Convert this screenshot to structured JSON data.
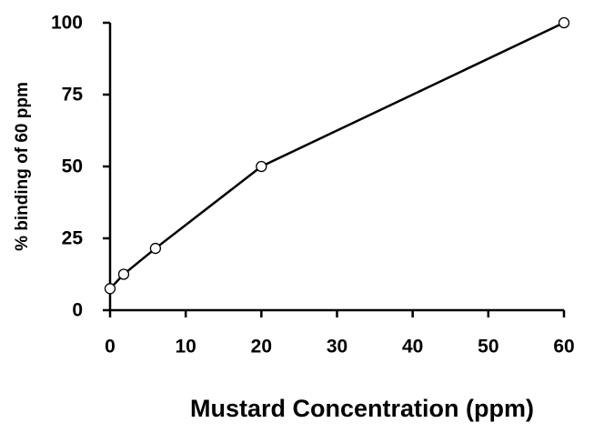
{
  "chart_data": {
    "type": "line",
    "x_label": "Mustard Concentration (ppm)",
    "y_label": "% binding of 60 ppm",
    "x": [
      0,
      1.8,
      6,
      20,
      60
    ],
    "series": [
      {
        "color": "#000000",
        "values": [
          7.5,
          12.5,
          21.5,
          50,
          100
        ]
      }
    ],
    "xlim": [
      0,
      60
    ],
    "xticks": [
      0,
      10,
      20,
      30,
      40,
      50,
      60
    ],
    "ylim": [
      0,
      100
    ],
    "yticks": [
      0,
      25,
      50,
      75,
      100
    ],
    "grid": false
  }
}
